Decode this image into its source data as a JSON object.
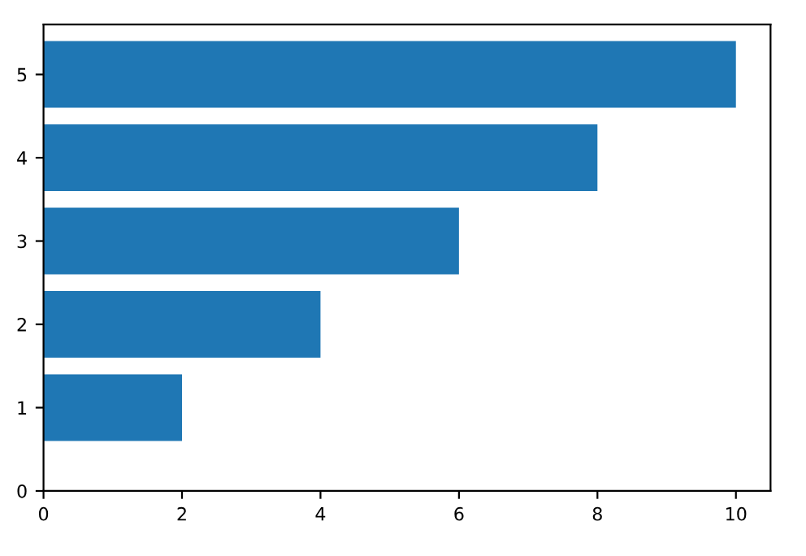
{
  "chart_data": {
    "type": "bar",
    "orientation": "horizontal",
    "x": [
      1,
      2,
      3,
      4,
      5
    ],
    "values": [
      2,
      4,
      6,
      8,
      10
    ],
    "color": "#1f77b4",
    "xlim": [
      0,
      10.5
    ],
    "xticks": [
      0,
      2,
      4,
      6,
      8,
      10
    ],
    "ylim": [
      0,
      5.6
    ],
    "yticks": [
      0,
      1,
      2,
      3,
      4,
      5
    ],
    "grid": false
  }
}
